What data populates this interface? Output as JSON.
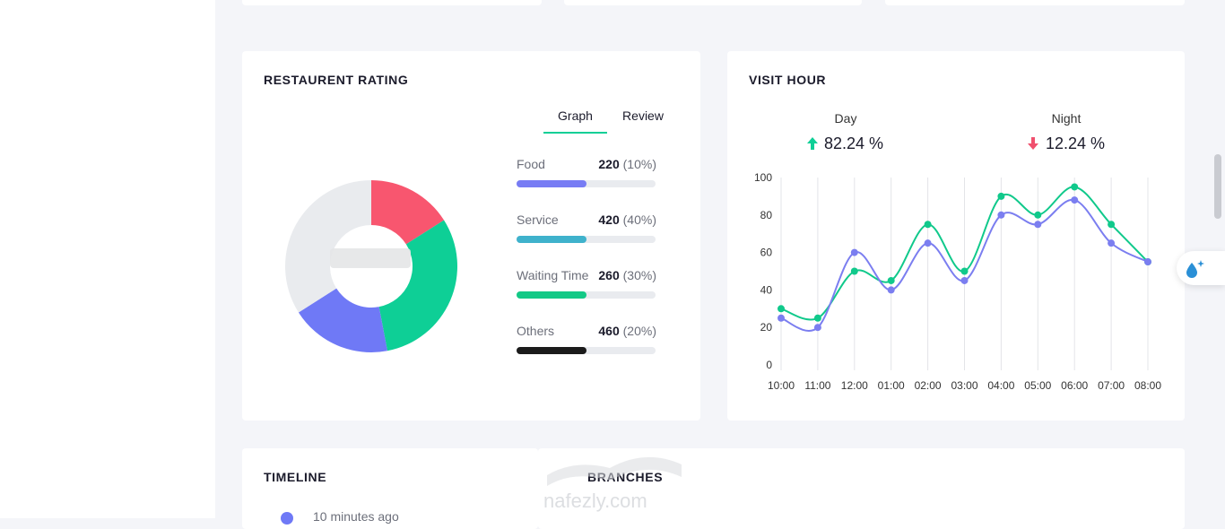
{
  "rating_card": {
    "title": "RESTAURENT RATING",
    "tabs": [
      {
        "label": "Graph",
        "active": true
      },
      {
        "label": "Review",
        "active": false
      }
    ],
    "items": [
      {
        "label": "Food",
        "value": "220",
        "percent": "(10%)",
        "fill": 0.5,
        "color": "#777cf4"
      },
      {
        "label": "Service",
        "value": "420",
        "percent": "(40%)",
        "fill": 0.5,
        "color": "#3fb2cc"
      },
      {
        "label": "Waiting Time",
        "value": "260",
        "percent": "(30%)",
        "fill": 0.5,
        "color": "#13c986"
      },
      {
        "label": "Others",
        "value": "460",
        "percent": "(20%)",
        "fill": 0.5,
        "color": "#1b1b1b"
      }
    ]
  },
  "visit_card": {
    "title": "VISIT HOUR",
    "day": {
      "label": "Day",
      "value": "82.24 %",
      "trend": "up",
      "color": "#0ecf96"
    },
    "night": {
      "label": "Night",
      "value": "12.24 %",
      "trend": "down",
      "color": "#f0506e"
    }
  },
  "bottom": {
    "timeline_title": "TIMELINE",
    "timeline_item": "10 minutes ago",
    "branches_title": "BRANCHES"
  },
  "watermark": {
    "text": "nafezly.com"
  },
  "chart_data": [
    {
      "type": "pie",
      "title": "",
      "segments": [
        {
          "value": 16,
          "color": "#f8566f"
        },
        {
          "value": 31,
          "color": "#0ecf96"
        },
        {
          "value": 19,
          "color": "#6f79f6"
        },
        {
          "value": 34,
          "color": "#e9ebee"
        }
      ]
    },
    {
      "type": "line",
      "title": "",
      "x": [
        "10:00",
        "11:00",
        "12:00",
        "01:00",
        "02:00",
        "03:00",
        "04:00",
        "05:00",
        "06:00",
        "07:00",
        "08:00"
      ],
      "ylim": [
        0,
        100
      ],
      "yticks": [
        0,
        20,
        40,
        60,
        80,
        100
      ],
      "grid": "vertical",
      "series": [
        {
          "values": [
            30,
            25,
            50,
            45,
            75,
            50,
            90,
            80,
            95,
            75,
            55
          ],
          "color": "#10c98b"
        },
        {
          "values": [
            25,
            20,
            60,
            40,
            65,
            45,
            80,
            75,
            88,
            65,
            55
          ],
          "color": "#7b7ef0"
        }
      ]
    }
  ]
}
